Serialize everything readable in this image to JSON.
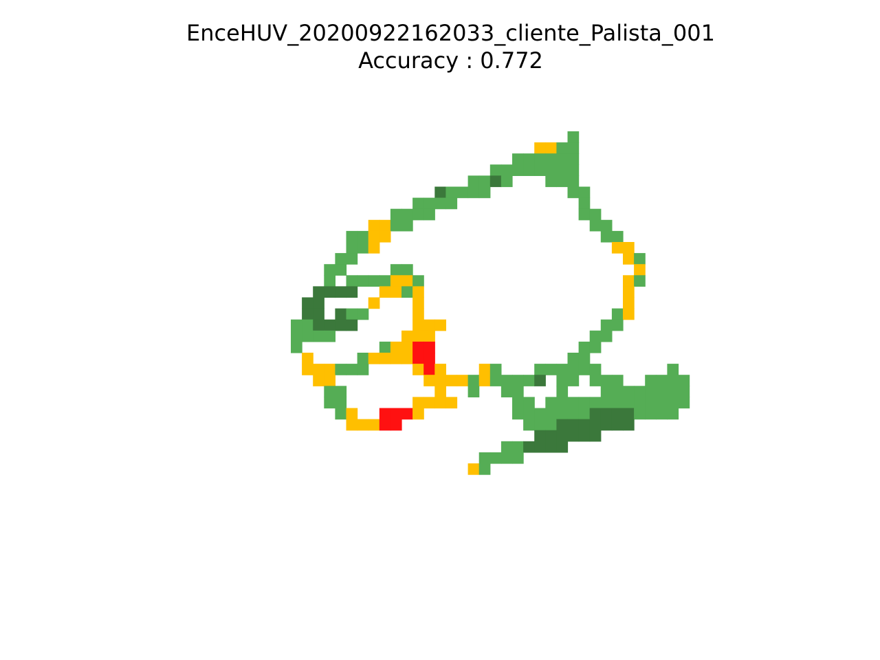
{
  "chart_data": {
    "type": "heatmap",
    "title": "EnceHUV_20200922162033_cliente_Palista_001",
    "subtitle_prefix": "Accuracy : ",
    "accuracy": "0.772",
    "axes_visible": false,
    "grid": false,
    "legend": "none",
    "palette": {
      "G": "#55ad55",
      "D": "#3b783b",
      "Y": "#ffbf00",
      "R": "#ff1111"
    },
    "grid_origin": {
      "col": 26,
      "row": 11
    },
    "cells": [
      {
        "row": 11,
        "runs": [
          [
            51,
            51,
            "G"
          ]
        ]
      },
      {
        "row": 12,
        "runs": [
          [
            48,
            49,
            "Y"
          ],
          [
            50,
            51,
            "G"
          ]
        ]
      },
      {
        "row": 13,
        "runs": [
          [
            46,
            51,
            "G"
          ]
        ]
      },
      {
        "row": 14,
        "runs": [
          [
            44,
            47,
            "G"
          ],
          [
            48,
            51,
            "G"
          ]
        ]
      },
      {
        "row": 15,
        "runs": [
          [
            42,
            43,
            "G"
          ],
          [
            44,
            44,
            "D"
          ],
          [
            45,
            45,
            "G"
          ],
          [
            49,
            51,
            "G"
          ]
        ]
      },
      {
        "row": 16,
        "runs": [
          [
            39,
            39,
            "D"
          ],
          [
            40,
            43,
            "G"
          ],
          [
            51,
            52,
            "G"
          ]
        ]
      },
      {
        "row": 17,
        "runs": [
          [
            37,
            40,
            "G"
          ],
          [
            52,
            52,
            "G"
          ]
        ]
      },
      {
        "row": 18,
        "runs": [
          [
            35,
            38,
            "G"
          ],
          [
            52,
            53,
            "G"
          ]
        ]
      },
      {
        "row": 19,
        "runs": [
          [
            33,
            34,
            "Y"
          ],
          [
            35,
            36,
            "G"
          ],
          [
            53,
            54,
            "G"
          ]
        ]
      },
      {
        "row": 20,
        "runs": [
          [
            31,
            32,
            "G"
          ],
          [
            33,
            34,
            "Y"
          ],
          [
            54,
            55,
            "G"
          ]
        ]
      },
      {
        "row": 21,
        "runs": [
          [
            31,
            32,
            "G"
          ],
          [
            33,
            33,
            "Y"
          ],
          [
            55,
            56,
            "Y"
          ]
        ]
      },
      {
        "row": 22,
        "runs": [
          [
            30,
            31,
            "G"
          ],
          [
            56,
            56,
            "Y"
          ],
          [
            57,
            57,
            "G"
          ]
        ]
      },
      {
        "row": 23,
        "runs": [
          [
            29,
            30,
            "G"
          ],
          [
            35,
            36,
            "G"
          ],
          [
            57,
            57,
            "Y"
          ]
        ]
      },
      {
        "row": 24,
        "runs": [
          [
            29,
            29,
            "G"
          ],
          [
            31,
            34,
            "G"
          ],
          [
            35,
            36,
            "Y"
          ],
          [
            37,
            37,
            "G"
          ],
          [
            56,
            56,
            "Y"
          ],
          [
            57,
            57,
            "G"
          ]
        ]
      },
      {
        "row": 25,
        "runs": [
          [
            28,
            31,
            "D"
          ],
          [
            34,
            35,
            "Y"
          ],
          [
            36,
            36,
            "G"
          ],
          [
            37,
            37,
            "Y"
          ],
          [
            56,
            56,
            "Y"
          ]
        ]
      },
      {
        "row": 26,
        "runs": [
          [
            27,
            28,
            "D"
          ],
          [
            33,
            33,
            "Y"
          ],
          [
            37,
            37,
            "Y"
          ],
          [
            56,
            56,
            "Y"
          ]
        ]
      },
      {
        "row": 27,
        "runs": [
          [
            27,
            28,
            "D"
          ],
          [
            30,
            30,
            "D"
          ],
          [
            31,
            32,
            "G"
          ],
          [
            37,
            37,
            "Y"
          ],
          [
            55,
            55,
            "G"
          ],
          [
            56,
            56,
            "Y"
          ]
        ]
      },
      {
        "row": 28,
        "runs": [
          [
            26,
            27,
            "G"
          ],
          [
            28,
            31,
            "D"
          ],
          [
            37,
            39,
            "Y"
          ],
          [
            54,
            55,
            "G"
          ]
        ]
      },
      {
        "row": 29,
        "runs": [
          [
            26,
            29,
            "G"
          ],
          [
            36,
            38,
            "Y"
          ],
          [
            53,
            54,
            "G"
          ]
        ]
      },
      {
        "row": 30,
        "runs": [
          [
            26,
            26,
            "G"
          ],
          [
            34,
            34,
            "G"
          ],
          [
            35,
            36,
            "Y"
          ],
          [
            37,
            38,
            "R"
          ],
          [
            52,
            53,
            "G"
          ]
        ]
      },
      {
        "row": 31,
        "runs": [
          [
            27,
            27,
            "Y"
          ],
          [
            32,
            32,
            "G"
          ],
          [
            33,
            36,
            "Y"
          ],
          [
            37,
            38,
            "R"
          ],
          [
            51,
            52,
            "G"
          ]
        ]
      },
      {
        "row": 32,
        "runs": [
          [
            27,
            29,
            "Y"
          ],
          [
            30,
            32,
            "G"
          ],
          [
            37,
            37,
            "Y"
          ],
          [
            38,
            38,
            "R"
          ],
          [
            39,
            39,
            "Y"
          ],
          [
            43,
            43,
            "Y"
          ],
          [
            44,
            44,
            "G"
          ],
          [
            48,
            53,
            "G"
          ],
          [
            60,
            60,
            "G"
          ]
        ]
      },
      {
        "row": 33,
        "runs": [
          [
            28,
            29,
            "Y"
          ],
          [
            38,
            41,
            "Y"
          ],
          [
            42,
            42,
            "G"
          ],
          [
            43,
            43,
            "Y"
          ],
          [
            44,
            47,
            "G"
          ],
          [
            48,
            48,
            "D"
          ],
          [
            50,
            51,
            "G"
          ],
          [
            53,
            55,
            "G"
          ],
          [
            58,
            61,
            "G"
          ]
        ]
      },
      {
        "row": 34,
        "runs": [
          [
            29,
            30,
            "G"
          ],
          [
            39,
            39,
            "Y"
          ],
          [
            42,
            42,
            "G"
          ],
          [
            45,
            46,
            "G"
          ],
          [
            50,
            50,
            "G"
          ],
          [
            54,
            61,
            "G"
          ]
        ]
      },
      {
        "row": 35,
        "runs": [
          [
            29,
            30,
            "G"
          ],
          [
            37,
            40,
            "Y"
          ],
          [
            46,
            47,
            "G"
          ],
          [
            49,
            61,
            "G"
          ]
        ]
      },
      {
        "row": 36,
        "runs": [
          [
            30,
            30,
            "G"
          ],
          [
            31,
            31,
            "Y"
          ],
          [
            34,
            36,
            "R"
          ],
          [
            37,
            37,
            "Y"
          ],
          [
            46,
            52,
            "G"
          ],
          [
            53,
            56,
            "D"
          ],
          [
            57,
            60,
            "G"
          ]
        ]
      },
      {
        "row": 37,
        "runs": [
          [
            31,
            33,
            "Y"
          ],
          [
            34,
            35,
            "R"
          ],
          [
            47,
            49,
            "G"
          ],
          [
            50,
            56,
            "D"
          ]
        ]
      },
      {
        "row": 38,
        "runs": [
          [
            48,
            53,
            "D"
          ]
        ]
      },
      {
        "row": 39,
        "runs": [
          [
            45,
            46,
            "G"
          ],
          [
            47,
            50,
            "D"
          ]
        ]
      },
      {
        "row": 40,
        "runs": [
          [
            43,
            46,
            "G"
          ]
        ]
      },
      {
        "row": 41,
        "runs": [
          [
            42,
            42,
            "Y"
          ],
          [
            43,
            43,
            "G"
          ]
        ]
      }
    ]
  }
}
